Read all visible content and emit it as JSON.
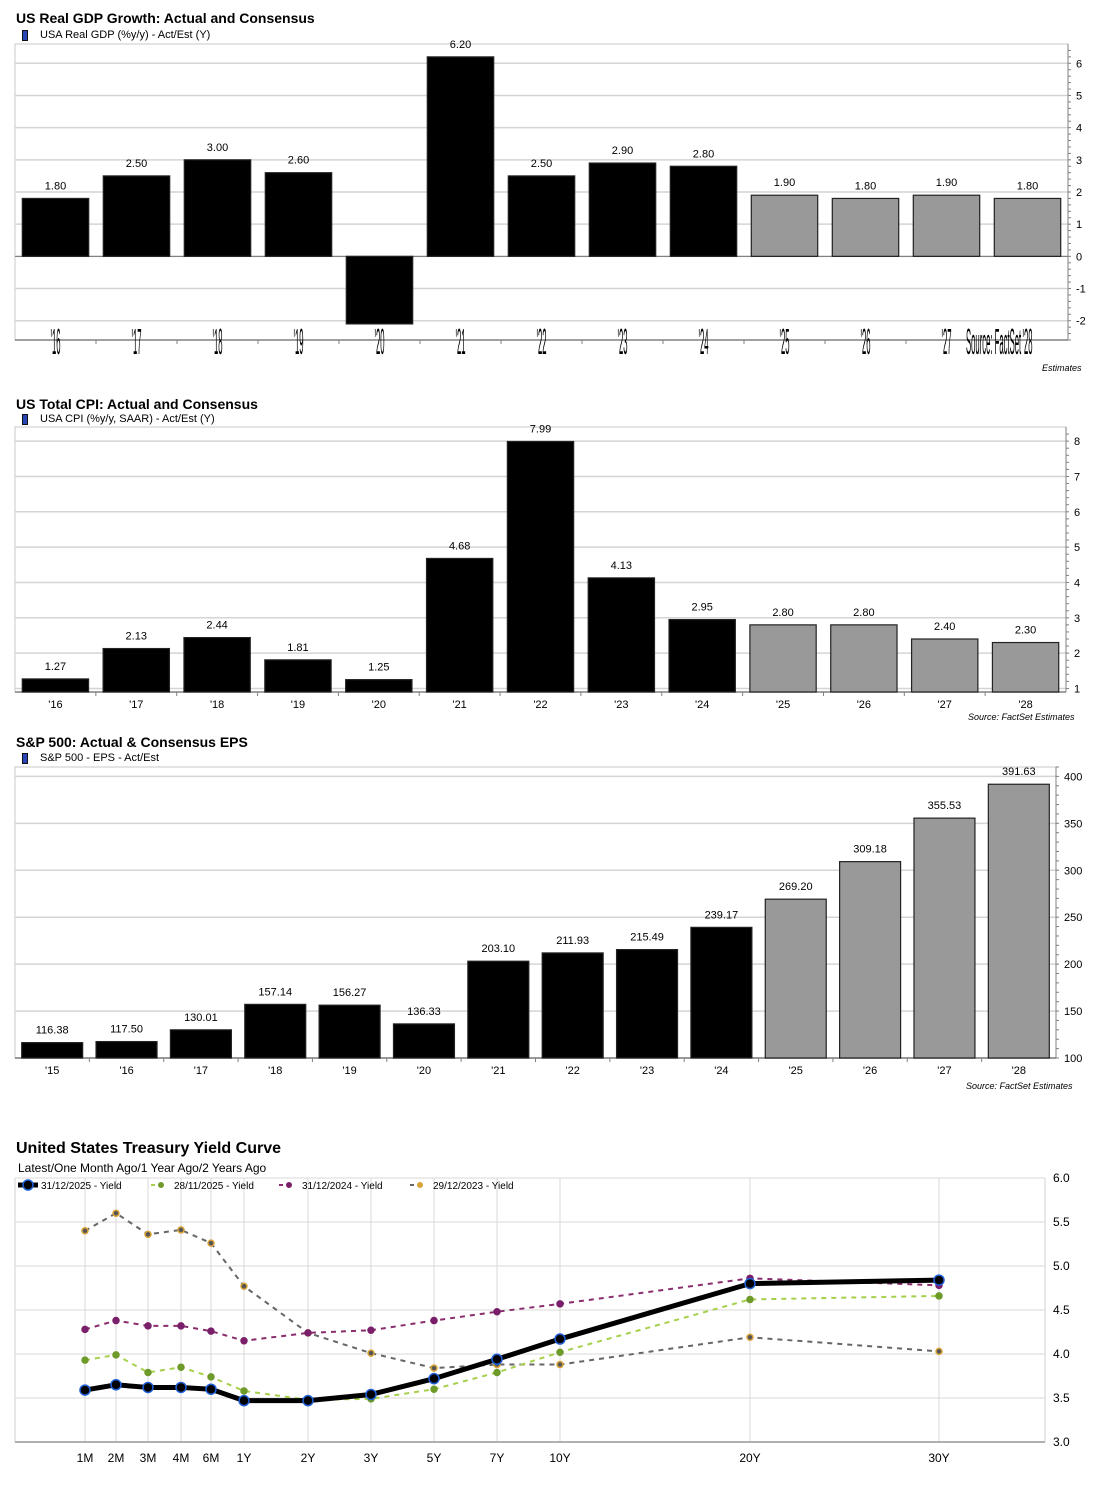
{
  "chart_data": [
    {
      "id": "gdp",
      "type": "bar",
      "title": "US Real GDP Growth: Actual and Consensus",
      "legend": [
        "USA Real GDP (%y/y) - Act/Est (Y)"
      ],
      "legend_color": "#2a45b5",
      "categories": [
        "'16",
        "'17",
        "'18",
        "'19",
        "'20",
        "'21",
        "'22",
        "'23",
        "'24",
        "'25",
        "'26",
        "'27",
        "'28"
      ],
      "values": [
        1.8,
        2.5,
        3.0,
        2.6,
        -2.1,
        6.2,
        2.5,
        2.9,
        2.8,
        1.9,
        1.8,
        1.9,
        1.8
      ],
      "labels": [
        "1.80",
        "2.50",
        "3.00",
        "2.60",
        "",
        "6.20",
        "2.50",
        "2.90",
        "2.80",
        "1.90",
        "1.80",
        "1.90",
        "1.80"
      ],
      "estimate": [
        false,
        false,
        false,
        false,
        false,
        false,
        false,
        false,
        false,
        true,
        true,
        true,
        true
      ],
      "ylim": [
        -2.6,
        6.6
      ],
      "yticks": [
        -2,
        -1,
        0,
        1,
        2,
        3,
        4,
        5,
        6
      ],
      "ytick_labels": [
        "-2",
        "-1",
        "0",
        "1",
        "2",
        "3",
        "4",
        "5",
        "6"
      ],
      "yaxis_side": "right",
      "grid": true,
      "source": "Source: FactSet Estimates",
      "xlabel": "",
      "ylabel": ""
    },
    {
      "id": "cpi",
      "type": "bar",
      "title": "US Total CPI: Actual and Consensus",
      "legend": [
        "USA CPI (%y/y, SAAR) - Act/Est (Y)"
      ],
      "legend_color": "#2a45b5",
      "categories": [
        "'16",
        "'17",
        "'18",
        "'19",
        "'20",
        "'21",
        "'22",
        "'23",
        "'24",
        "'25",
        "'26",
        "'27",
        "'28"
      ],
      "values": [
        1.27,
        2.13,
        2.44,
        1.81,
        1.25,
        4.68,
        7.99,
        4.13,
        2.95,
        2.8,
        2.8,
        2.4,
        2.3
      ],
      "labels": [
        "1.27",
        "2.13",
        "2.44",
        "1.81",
        "1.25",
        "4.68",
        "7.99",
        "4.13",
        "2.95",
        "2.80",
        "2.80",
        "2.40",
        "2.30"
      ],
      "estimate": [
        false,
        false,
        false,
        false,
        false,
        false,
        false,
        false,
        false,
        true,
        true,
        true,
        true
      ],
      "ylim": [
        0.9,
        8.4
      ],
      "yticks": [
        1,
        2,
        3,
        4,
        5,
        6,
        7,
        8
      ],
      "ytick_labels": [
        "1",
        "2",
        "3",
        "4",
        "5",
        "6",
        "7",
        "8"
      ],
      "yaxis_side": "right",
      "grid": true,
      "source": "Source: FactSet Estimates",
      "xlabel": "",
      "ylabel": ""
    },
    {
      "id": "eps",
      "type": "bar",
      "title": "S&P 500: Actual & Consensus EPS",
      "legend": [
        "S&P 500 - EPS - Act/Est"
      ],
      "legend_color": "#2a45b5",
      "categories": [
        "'15",
        "'16",
        "'17",
        "'18",
        "'19",
        "'20",
        "'21",
        "'22",
        "'23",
        "'24",
        "'25",
        "'26",
        "'27",
        "'28"
      ],
      "values": [
        116.38,
        117.5,
        130.01,
        157.14,
        156.27,
        136.33,
        203.1,
        211.93,
        215.49,
        239.17,
        269.2,
        309.18,
        355.53,
        391.63
      ],
      "labels": [
        "116.38",
        "117.50",
        "130.01",
        "157.14",
        "156.27",
        "136.33",
        "203.10",
        "211.93",
        "215.49",
        "239.17",
        "269.20",
        "309.18",
        "355.53",
        "391.63"
      ],
      "estimate": [
        false,
        false,
        false,
        false,
        false,
        false,
        false,
        false,
        false,
        false,
        true,
        true,
        true,
        true
      ],
      "ylim": [
        100,
        410
      ],
      "yticks": [
        100,
        150,
        200,
        250,
        300,
        350,
        400
      ],
      "ytick_labels": [
        "100",
        "150",
        "200",
        "250",
        "300",
        "350",
        "400"
      ],
      "yaxis_side": "right",
      "grid": true,
      "source": "Source: FactSet Estimates",
      "xlabel": "",
      "ylabel": ""
    },
    {
      "id": "yield",
      "type": "line",
      "title": "United States Treasury Yield Curve",
      "subtitle": "Latest/One Month Ago/1 Year Ago/2 Years Ago",
      "x": [
        "1M",
        "2M",
        "3M",
        "4M",
        "6M",
        "1Y",
        "2Y",
        "3Y",
        "5Y",
        "7Y",
        "10Y",
        "20Y",
        "30Y"
      ],
      "x_years": [
        0.0833,
        0.1667,
        0.25,
        0.3333,
        0.5,
        1,
        2,
        3,
        5,
        7,
        10,
        20,
        30
      ],
      "series": [
        {
          "name": "31/12/2025 - Yield",
          "color": "#000000",
          "marker_color": "#1f5fd6",
          "style": "solid",
          "values": [
            3.59,
            3.65,
            3.62,
            3.62,
            3.6,
            3.47,
            3.47,
            3.54,
            3.72,
            3.94,
            4.17,
            4.8,
            4.84
          ]
        },
        {
          "name": "28/11/2025 - Yield",
          "color": "#a6d04a",
          "marker_color": "#6e9a2a",
          "style": "dashed",
          "values": [
            3.93,
            3.99,
            3.79,
            3.85,
            3.74,
            3.58,
            3.48,
            3.49,
            3.6,
            3.79,
            4.02,
            4.62,
            4.66
          ]
        },
        {
          "name": "31/12/2024 - Yield",
          "color": "#8a2d6e",
          "marker_color": "#7a1f6a",
          "style": "dashed",
          "values": [
            4.28,
            4.38,
            4.32,
            4.32,
            4.26,
            4.15,
            4.24,
            4.27,
            4.38,
            4.48,
            4.57,
            4.86,
            4.78
          ]
        },
        {
          "name": "29/12/2023 - Yield",
          "color": "#666666",
          "marker_color": "#d9a43a",
          "style": "dashed",
          "values": [
            5.4,
            5.6,
            5.36,
            5.41,
            5.26,
            4.77,
            4.24,
            4.01,
            3.84,
            3.88,
            3.88,
            4.19,
            4.03
          ]
        }
      ],
      "ylim": [
        3.0,
        6.0
      ],
      "yticks": [
        3.0,
        3.5,
        4.0,
        4.5,
        5.0,
        5.5,
        6.0
      ],
      "ytick_labels": [
        "3.0",
        "3.5",
        "4.0",
        "4.5",
        "5.0",
        "5.5",
        "6.0"
      ],
      "yaxis_side": "right",
      "grid": true,
      "legend_position": "top-left",
      "xlabel": "",
      "ylabel": ""
    }
  ],
  "colors": {
    "actual_bar": "#000000",
    "estimate_bar": "#999999",
    "grid": "#d4d4d4",
    "axis": "#808080"
  }
}
